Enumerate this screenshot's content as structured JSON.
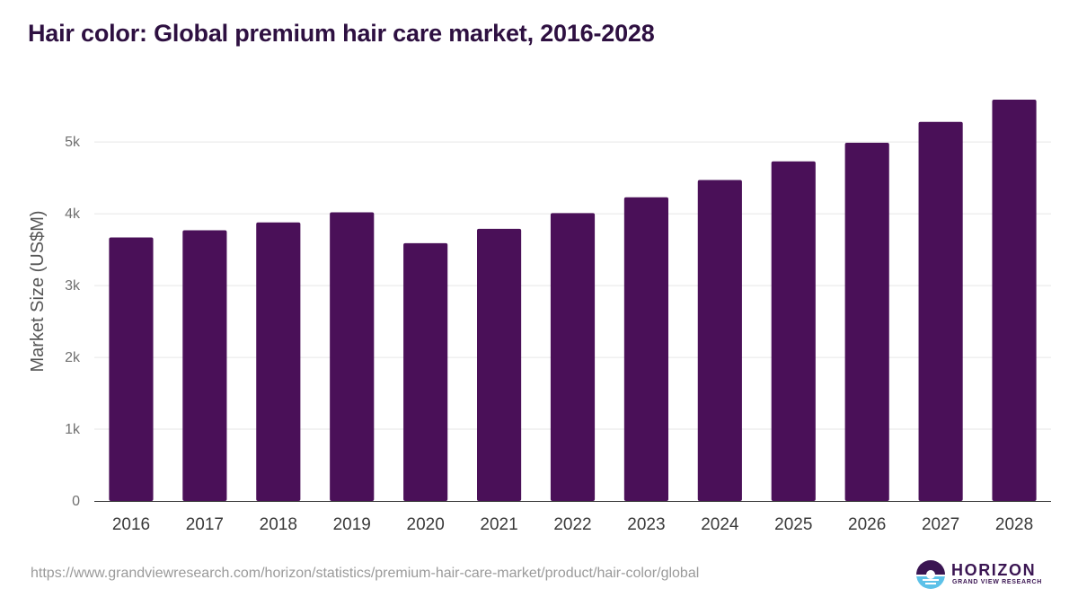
{
  "chart_data": {
    "type": "bar",
    "title": "Hair color: Global premium hair care market, 2016-2028",
    "ylabel": "Market Size (US$M)",
    "xlabel": "",
    "categories": [
      "2016",
      "2017",
      "2018",
      "2019",
      "2020",
      "2021",
      "2022",
      "2023",
      "2024",
      "2025",
      "2026",
      "2027",
      "2028"
    ],
    "values": [
      3670,
      3770,
      3880,
      4020,
      3590,
      3790,
      4010,
      4230,
      4470,
      4730,
      4990,
      5280,
      5590
    ],
    "ylim": [
      0,
      5590
    ],
    "yticks": [
      0,
      1000,
      2000,
      3000,
      4000,
      5000
    ],
    "ytick_labels": [
      "0",
      "1k",
      "2k",
      "3k",
      "4k",
      "5k"
    ],
    "grid": true,
    "legend": "none",
    "bar_color": "#4a1058"
  },
  "footer": {
    "source_url": "https://www.grandviewresearch.com/horizon/statistics/premium-hair-care-market/product/hair-color/global"
  },
  "logo": {
    "name": "HORIZON",
    "tagline": "GRAND VIEW RESEARCH"
  }
}
